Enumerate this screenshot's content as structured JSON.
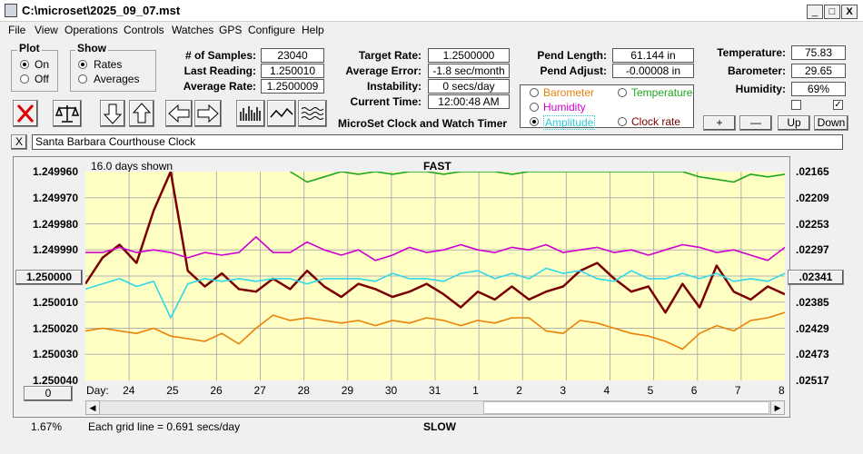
{
  "window": {
    "title": "C:\\microset\\2025_09_07.mst",
    "min": "_",
    "max": "□",
    "close": "X"
  },
  "menu": [
    "File",
    "View",
    "Operations",
    "Controls",
    "Watches",
    "GPS",
    "Configure",
    "Help"
  ],
  "plot_group": {
    "title": "Plot",
    "on": "On",
    "off": "Off",
    "selected": "On"
  },
  "show_group": {
    "title": "Show",
    "rates": "Rates",
    "averages": "Averages",
    "selected": "Rates"
  },
  "stats_left": [
    {
      "label": "# of Samples:",
      "value": "23040"
    },
    {
      "label": "Last Reading:",
      "value": "1.250010"
    },
    {
      "label": "Average Rate:",
      "value": "1.2500009"
    }
  ],
  "stats_mid": [
    {
      "label": "Target Rate:",
      "value": "1.2500000"
    },
    {
      "label": "Average Error:",
      "value": "-1.8 sec/month"
    },
    {
      "label": "Instability:",
      "value": "0 secs/day"
    },
    {
      "label": "Current Time:",
      "value": "12:00:48 AM"
    }
  ],
  "pend": [
    {
      "label": "Pend Length:",
      "value": "61.144 in"
    },
    {
      "label": "Pend Adjust:",
      "value": "-0.00008 in"
    }
  ],
  "env": [
    {
      "label": "Temperature:",
      "value": "75.83"
    },
    {
      "label": "Barometer:",
      "value": "29.65"
    },
    {
      "label": "Humidity:",
      "value": "69%"
    }
  ],
  "app_caption": "MicroSet Clock and Watch Timer",
  "series_select": {
    "barometer": "Barometer",
    "temperature": "Temperature",
    "humidity": "Humidity",
    "amplitude": "Amplitude",
    "clock_rate": "Clock rate",
    "selected": "Amplitude"
  },
  "nav_buttons": {
    "plus": "+",
    "minus": "—",
    "up": "Up",
    "down": "Down"
  },
  "clock_close": "X",
  "clock_name": "Santa Barbara Courthouse Clock",
  "colors": {
    "barometer": "#e8820a",
    "temperature": "#1fa81f",
    "humidity": "#d000d0",
    "amplitude": "#30d8e8",
    "clock_rate": "#7a0000",
    "plot_bg": "#ffffc4"
  },
  "chart_data": {
    "type": "line",
    "top_label": "FAST",
    "bottom_label": "SLOW",
    "days_shown": "16.0 days shown",
    "grid_note": "Each grid line = 0.691 secs/day",
    "percent": "1.67%",
    "left_button": "1.250000",
    "bottom_left_button": "0",
    "right_button": ".02341",
    "x_axis_label": "Day:",
    "x_ticks": [
      "24",
      "25",
      "26",
      "27",
      "28",
      "29",
      "30",
      "31",
      "1",
      "2",
      "3",
      "4",
      "5",
      "6",
      "7",
      "8"
    ],
    "y_left_ticks": [
      "1.249960",
      "1.249970",
      "1.249980",
      "1.249990",
      "1.250000",
      "1.250010",
      "1.250020",
      "1.250030",
      "1.250040"
    ],
    "y_right_ticks": [
      ".02165",
      ".02209",
      ".02253",
      ".02297",
      ".02341",
      ".02385",
      ".02429",
      ".02473",
      ".02517"
    ],
    "ylim_left": [
      1.24996,
      1.25004
    ],
    "series": [
      {
        "key": "clock_rate",
        "values": [
          1.250003,
          1.249993,
          1.249988,
          1.249995,
          1.249975,
          1.24996,
          1.249998,
          1.250004,
          1.249999,
          1.250005,
          1.250006,
          1.250001,
          1.250005,
          1.249998,
          1.250004,
          1.250008,
          1.250003,
          1.250005,
          1.250008,
          1.250006,
          1.250003,
          1.250007,
          1.250012,
          1.250006,
          1.250009,
          1.250004,
          1.250009,
          1.250006,
          1.250004,
          1.249998,
          1.249995,
          1.250001,
          1.250006,
          1.250004,
          1.250014,
          1.250003,
          1.250012,
          1.249996,
          1.250006,
          1.250009,
          1.250004,
          1.250007
        ]
      },
      {
        "key": "humidity",
        "values": [
          1.249991,
          1.249991,
          1.249989,
          1.249991,
          1.24999,
          1.249991,
          1.249993,
          1.249991,
          1.249992,
          1.249991,
          1.249985,
          1.249991,
          1.249991,
          1.249987,
          1.24999,
          1.249992,
          1.24999,
          1.249994,
          1.249992,
          1.249989,
          1.249991,
          1.24999,
          1.249988,
          1.24999,
          1.249991,
          1.249989,
          1.24999,
          1.249988,
          1.249991,
          1.24999,
          1.249989,
          1.249991,
          1.24999,
          1.249992,
          1.24999,
          1.249988,
          1.249989,
          1.249991,
          1.24999,
          1.249992,
          1.249994,
          1.249989
        ]
      },
      {
        "key": "temperature",
        "values": [
          null,
          null,
          null,
          null,
          null,
          null,
          null,
          null,
          null,
          null,
          null,
          null,
          1.24996,
          1.249964,
          1.249962,
          1.24996,
          1.249961,
          1.24996,
          1.249961,
          1.24996,
          1.24996,
          1.249961,
          1.24996,
          1.24996,
          1.24996,
          1.249961,
          1.24996,
          1.24996,
          1.24996,
          1.24996,
          1.24996,
          1.24996,
          1.24996,
          1.24996,
          1.24996,
          1.24996,
          1.249962,
          1.249963,
          1.249964,
          1.249961,
          1.249962,
          1.249961
        ]
      },
      {
        "key": "amplitude",
        "values": [
          1.250005,
          1.250003,
          1.250001,
          1.250004,
          1.250002,
          1.250016,
          1.250003,
          1.250001,
          1.250002,
          1.250001,
          1.250002,
          1.250001,
          1.250001,
          1.250003,
          1.250001,
          1.250001,
          1.250001,
          1.250002,
          1.249999,
          1.250001,
          1.250001,
          1.250002,
          1.249999,
          1.249998,
          1.250001,
          1.249999,
          1.250001,
          1.249997,
          1.249999,
          1.249998,
          1.250001,
          1.250002,
          1.249998,
          1.250001,
          1.250001,
          1.249999,
          1.250001,
          1.249999,
          1.250002,
          1.250001,
          1.250002,
          1.249999
        ]
      },
      {
        "key": "barometer",
        "values": [
          1.250021,
          1.25002,
          1.250021,
          1.250022,
          1.25002,
          1.250023,
          1.250024,
          1.250025,
          1.250022,
          1.250026,
          1.25002,
          1.250015,
          1.250017,
          1.250016,
          1.250017,
          1.250018,
          1.250017,
          1.250019,
          1.250017,
          1.250018,
          1.250016,
          1.250017,
          1.250019,
          1.250017,
          1.250018,
          1.250016,
          1.250016,
          1.250021,
          1.250022,
          1.250017,
          1.250018,
          1.25002,
          1.250022,
          1.250023,
          1.250025,
          1.250028,
          1.250022,
          1.250019,
          1.250021,
          1.250017,
          1.250016,
          1.250014
        ]
      }
    ]
  }
}
